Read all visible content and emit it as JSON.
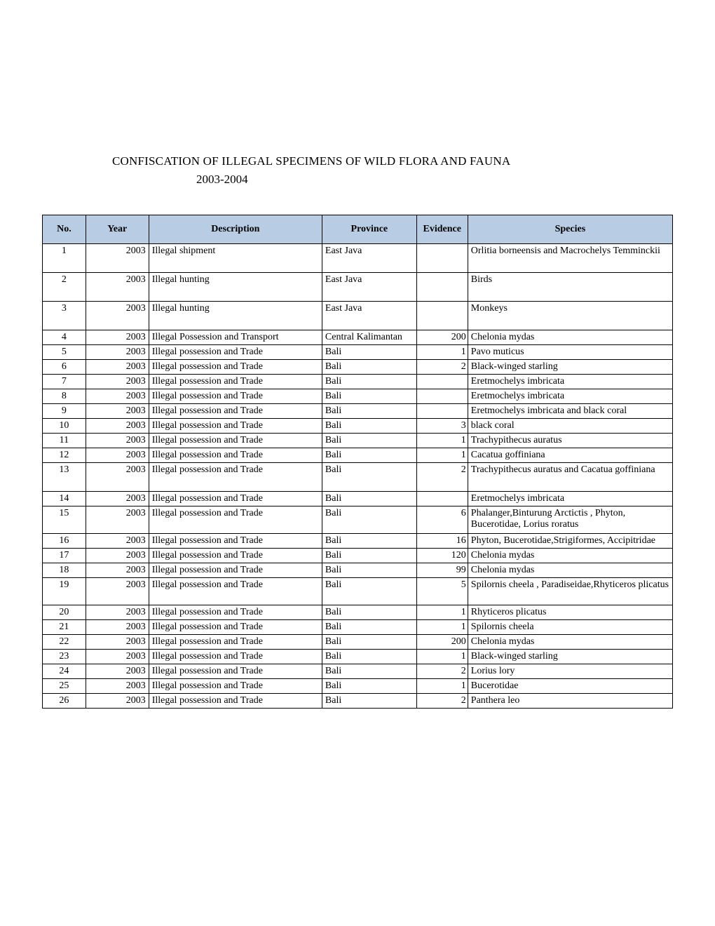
{
  "title": {
    "line1": "CONFISCATION OF ILLEGAL SPECIMENS OF WILD FLORA AND FAUNA",
    "line2": "2003-2004"
  },
  "table": {
    "header_bg": "#b8cce4",
    "border_color": "#000000",
    "columns": [
      "No.",
      "Year",
      "Description",
      "Province",
      "Evidence",
      "Species"
    ],
    "rows": [
      {
        "no": "1",
        "year": "2003",
        "desc": "Illegal shipment",
        "prov": "East Java",
        "evid": "",
        "spec": "Orlitia borneensis  and Macrochelys Temminckii",
        "tall": true
      },
      {
        "no": "2",
        "year": "2003",
        "desc": "Illegal hunting",
        "prov": "East Java",
        "evid": "",
        "spec": "Birds",
        "tall": true
      },
      {
        "no": "3",
        "year": "2003",
        "desc": "Illegal hunting",
        "prov": "East Java",
        "evid": "",
        "spec": "Monkeys",
        "tall": true
      },
      {
        "no": "4",
        "year": "2003",
        "desc": "Illegal Possession and Transport",
        "prov": "Central Kalimantan",
        "evid": "200",
        "spec": "Chelonia mydas"
      },
      {
        "no": "5",
        "year": "2003",
        "desc": "Illegal possession and Trade",
        "prov": "Bali",
        "evid": "1",
        "spec": "Pavo muticus"
      },
      {
        "no": "6",
        "year": "2003",
        "desc": "Illegal possession and Trade",
        "prov": "Bali",
        "evid": "2",
        "spec": "Black-winged starling"
      },
      {
        "no": "7",
        "year": "2003",
        "desc": "Illegal possession and Trade",
        "prov": "Bali",
        "evid": "",
        "spec": "Eretmochelys imbricata"
      },
      {
        "no": "8",
        "year": "2003",
        "desc": "Illegal possession and Trade",
        "prov": "Bali",
        "evid": "",
        "spec": "Eretmochelys imbricata"
      },
      {
        "no": "9",
        "year": "2003",
        "desc": "Illegal possession and Trade",
        "prov": "Bali",
        "evid": "",
        "spec": "Eretmochelys imbricata  and black coral"
      },
      {
        "no": "10",
        "year": "2003",
        "desc": "Illegal possession and Trade",
        "prov": "Bali",
        "evid": "3",
        "spec": "black coral"
      },
      {
        "no": "11",
        "year": "2003",
        "desc": "Illegal possession and Trade",
        "prov": "Bali",
        "evid": "1",
        "spec": "Trachypithecus auratus"
      },
      {
        "no": "12",
        "year": "2003",
        "desc": "Illegal possession and Trade",
        "prov": "Bali",
        "evid": "1",
        "spec": "Cacatua goffiniana"
      },
      {
        "no": "13",
        "year": "2003",
        "desc": "Illegal possession and Trade",
        "prov": "Bali",
        "evid": "2",
        "spec": "Trachypithecus auratus  and Cacatua goffiniana",
        "tall": true
      },
      {
        "no": "14",
        "year": "2003",
        "desc": "Illegal possession and Trade",
        "prov": "Bali",
        "evid": "",
        "spec": "Eretmochelys imbricata"
      },
      {
        "no": "15",
        "year": "2003",
        "desc": "Illegal possession and Trade",
        "prov": "Bali",
        "evid": "6",
        "spec": "Phalanger,Binturung Arctictis ,  Phyton, Bucerotidae, Lorius roratus",
        "twoLine": true
      },
      {
        "no": "16",
        "year": "2003",
        "desc": "Illegal possession and Trade",
        "prov": "Bali",
        "evid": "16",
        "spec": "Phyton, Bucerotidae,Strigiformes, Accipitridae"
      },
      {
        "no": "17",
        "year": "2003",
        "desc": "Illegal possession and Trade",
        "prov": "Bali",
        "evid": "120",
        "spec": "Chelonia mydas"
      },
      {
        "no": "18",
        "year": "2003",
        "desc": "Illegal possession and Trade",
        "prov": "Bali",
        "evid": "99",
        "spec": "Chelonia mydas"
      },
      {
        "no": "19",
        "year": "2003",
        "desc": "Illegal possession and Trade",
        "prov": "Bali",
        "evid": "5",
        "spec": "Spilornis cheela , Paradiseidae,Rhyticeros plicatus",
        "twoLine": true
      },
      {
        "no": "20",
        "year": "2003",
        "desc": "Illegal possession and Trade",
        "prov": "Bali",
        "evid": "1",
        "spec": "Rhyticeros plicatus"
      },
      {
        "no": "21",
        "year": "2003",
        "desc": "Illegal possession and Trade",
        "prov": "Bali",
        "evid": "1",
        "spec": "Spilornis cheela"
      },
      {
        "no": "22",
        "year": "2003",
        "desc": "Illegal possession and Trade",
        "prov": "Bali",
        "evid": "200",
        "spec": "Chelonia mydas"
      },
      {
        "no": "23",
        "year": "2003",
        "desc": "Illegal possession and Trade",
        "prov": "Bali",
        "evid": "1",
        "spec": "Black-winged starling"
      },
      {
        "no": "24",
        "year": "2003",
        "desc": "Illegal possession and Trade",
        "prov": "Bali",
        "evid": "2",
        "spec": "Lorius lory"
      },
      {
        "no": "25",
        "year": "2003",
        "desc": "Illegal possession and Trade",
        "prov": "Bali",
        "evid": "1",
        "spec": "Bucerotidae"
      },
      {
        "no": "26",
        "year": "2003",
        "desc": "Illegal possession and Trade",
        "prov": "Bali",
        "evid": "2",
        "spec": "Panthera leo"
      }
    ]
  }
}
